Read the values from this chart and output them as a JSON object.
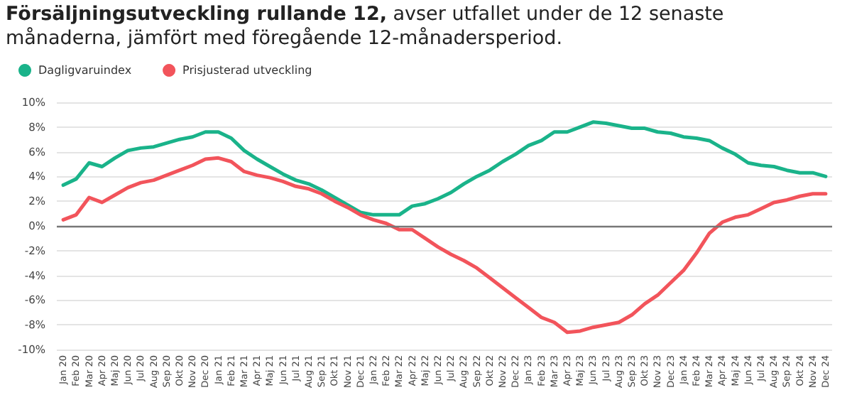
{
  "chart_data": {
    "type": "line",
    "title": "Försäljningsutveckling rullande 12,",
    "subtitle": "avser utfallet under de 12 senaste månaderna, jämfört med föregående 12-månadersperiod.",
    "categories": [
      "Jan 20",
      "Feb 20",
      "Mar 20",
      "Apr 20",
      "Maj 20",
      "Jun 20",
      "Jul 20",
      "Aug 20",
      "Sep 20",
      "Okt 20",
      "Nov 20",
      "Dec 20",
      "Jan 21",
      "Feb 21",
      "Mar 21",
      "Apr 21",
      "Maj 21",
      "Jun 21",
      "Jul 21",
      "Aug 21",
      "Sep 21",
      "Okt 21",
      "Nov 21",
      "Dec 21",
      "Jan 22",
      "Feb 22",
      "Mar 22",
      "Apr 22",
      "Maj 22",
      "Jun 22",
      "Jul 22",
      "Aug 22",
      "Sep 22",
      "Okt 22",
      "Nov 22",
      "Dec 22",
      "Jan 23",
      "Feb 23",
      "Mar 23",
      "Apr 23",
      "Maj 23",
      "Jun 23",
      "Jul 23",
      "Aug 23",
      "Sep 23",
      "Okt 23",
      "Nov 23",
      "Dec 23",
      "Jan 24",
      "Feb 24",
      "Mar 24",
      "Apr 24",
      "Maj 24",
      "Jun 24",
      "Jul 24",
      "Aug 24",
      "Sep 24",
      "Okt 24",
      "Nov 24",
      "Dec 24"
    ],
    "series": [
      {
        "name": "Dagligvaruindex",
        "color": "#1ab38a",
        "values": [
          3.3,
          3.8,
          5.1,
          4.8,
          5.5,
          6.1,
          6.3,
          6.4,
          6.7,
          7.0,
          7.2,
          7.6,
          7.6,
          7.1,
          6.1,
          5.4,
          4.8,
          4.2,
          3.7,
          3.4,
          2.9,
          2.3,
          1.7,
          1.1,
          0.9,
          0.9,
          0.9,
          1.6,
          1.8,
          2.2,
          2.7,
          3.4,
          4.0,
          4.5,
          5.2,
          5.8,
          6.5,
          6.9,
          7.6,
          7.6,
          8.0,
          8.4,
          8.3,
          8.1,
          7.9,
          7.9,
          7.6,
          7.5,
          7.2,
          7.1,
          6.9,
          6.3,
          5.8,
          5.1,
          4.9,
          4.8,
          4.5,
          4.3,
          4.3,
          4.0
        ]
      },
      {
        "name": "Prisjusterad utveckling",
        "color": "#f2545b",
        "values": [
          0.5,
          0.9,
          2.3,
          1.9,
          2.5,
          3.1,
          3.5,
          3.7,
          4.1,
          4.5,
          4.9,
          5.4,
          5.5,
          5.2,
          4.4,
          4.1,
          3.9,
          3.6,
          3.2,
          3.0,
          2.6,
          2.0,
          1.5,
          0.9,
          0.5,
          0.2,
          -0.3,
          -0.3,
          -1.0,
          -1.7,
          -2.3,
          -2.8,
          -3.4,
          -4.2,
          -5.0,
          -5.8,
          -6.6,
          -7.4,
          -7.8,
          -8.6,
          -8.5,
          -8.2,
          -8.0,
          -7.8,
          -7.2,
          -6.3,
          -5.6,
          -4.6,
          -3.6,
          -2.2,
          -0.6,
          0.3,
          0.7,
          0.9,
          1.4,
          1.9,
          2.1,
          2.4,
          2.6,
          2.6
        ]
      }
    ],
    "ylim": [
      -10,
      10
    ],
    "yticks": [
      {
        "value": -10,
        "label": "-10%"
      },
      {
        "value": -8,
        "label": "-8%"
      },
      {
        "value": -6,
        "label": "-6%"
      },
      {
        "value": -4,
        "label": "-4%"
      },
      {
        "value": -2,
        "label": "-2%"
      },
      {
        "value": 0,
        "label": "0%"
      },
      {
        "value": 2,
        "label": "2%"
      },
      {
        "value": 4,
        "label": "4%"
      },
      {
        "value": 6,
        "label": "6%"
      },
      {
        "value": 8,
        "label": "8%"
      },
      {
        "value": 10,
        "label": "10%"
      }
    ],
    "grid": "y",
    "legend": "top left",
    "marker": "none",
    "line_style": "solid"
  }
}
